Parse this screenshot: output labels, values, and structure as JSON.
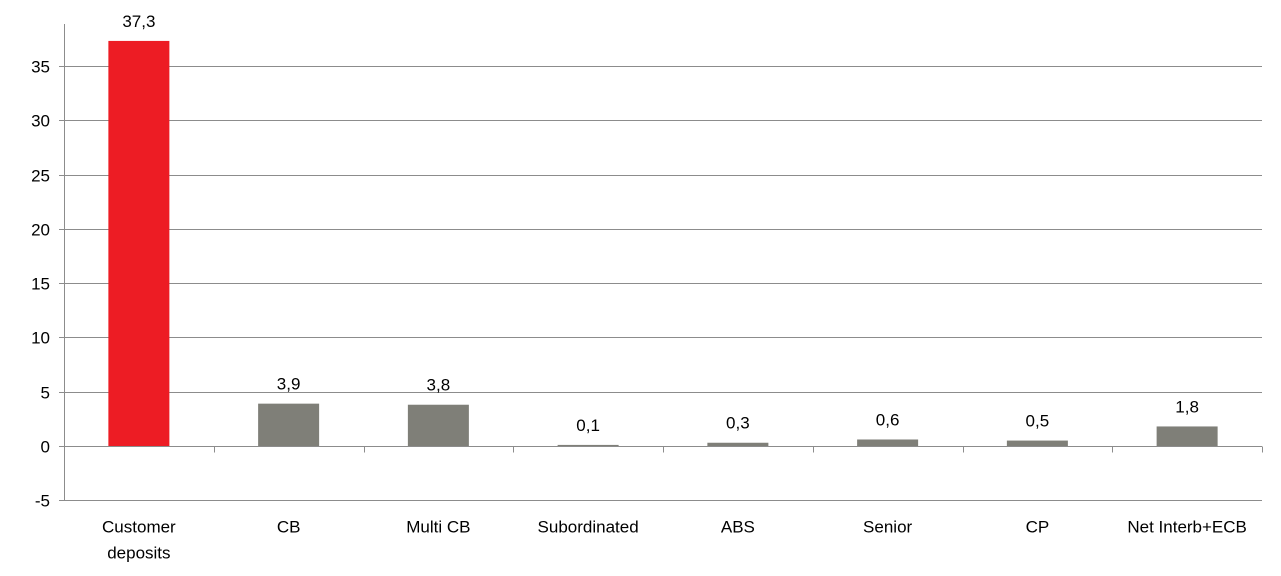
{
  "chart_data": {
    "type": "bar",
    "title": "",
    "xlabel": "",
    "ylabel": "",
    "ylim": [
      -5,
      35
    ],
    "yticks": [
      -5,
      0,
      5,
      10,
      15,
      20,
      25,
      30,
      35
    ],
    "ytick_labels": [
      "-5",
      "0",
      "5",
      "10",
      "15",
      "20",
      "25",
      "30",
      "35"
    ],
    "grid": true,
    "legend": "none",
    "categories": [
      [
        "Customer",
        "deposits"
      ],
      [
        "CB"
      ],
      [
        "Multi CB"
      ],
      [
        "Subordinated"
      ],
      [
        "ABS"
      ],
      [
        "Senior"
      ],
      [
        "CP"
      ],
      [
        "Net Interb+ECB"
      ]
    ],
    "values": [
      37.3,
      3.9,
      3.8,
      0.1,
      0.3,
      0.6,
      0.5,
      1.8
    ],
    "data_labels": [
      "37,3",
      "3,9",
      "3,8",
      "0,1",
      "0,3",
      "0,6",
      "0,5",
      "1,8"
    ],
    "colors": [
      "#ed1c24",
      "#7f7f78",
      "#7f7f78",
      "#7f7f78",
      "#7f7f78",
      "#7f7f78",
      "#7f7f78",
      "#7f7f78"
    ],
    "gridline_color": "#8c8c8c"
  }
}
